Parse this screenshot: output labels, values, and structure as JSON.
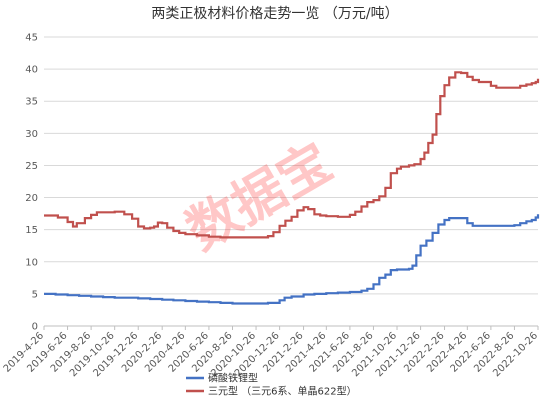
{
  "chart_data": {
    "type": "line",
    "title": "两类正极材料价格走势一览 （万元/吨）",
    "watermark": "数据宝",
    "ylim": [
      0,
      45
    ],
    "yticks": [
      0,
      5,
      10,
      15,
      20,
      25,
      30,
      35,
      40,
      45
    ],
    "xlim": [
      "2019-04-26",
      "2022-10-26"
    ],
    "xticks": [
      "2019-4-26",
      "2019-6-26",
      "2019-8-26",
      "2019-10-26",
      "2019-12-26",
      "2020-2-26",
      "2020-4-26",
      "2020-6-26",
      "2020-8-26",
      "2020-10-26",
      "2020-12-26",
      "2021-2-26",
      "2021-4-26",
      "2021-6-26",
      "2021-8-26",
      "2021-10-26",
      "2021-12-26",
      "2022-2-26",
      "2022-4-26",
      "2022-6-26",
      "2022-8-26",
      "2022-10-26"
    ],
    "grid": true,
    "legend_position": "bottom",
    "series": [
      {
        "name": "磷酸铁锂型",
        "color": "#4472c4",
        "points": [
          [
            "2019-04-26",
            5.0
          ],
          [
            "2019-05-26",
            4.9
          ],
          [
            "2019-06-26",
            4.8
          ],
          [
            "2019-07-26",
            4.7
          ],
          [
            "2019-08-26",
            4.6
          ],
          [
            "2019-09-26",
            4.5
          ],
          [
            "2019-10-26",
            4.4
          ],
          [
            "2019-11-26",
            4.4
          ],
          [
            "2019-12-26",
            4.3
          ],
          [
            "2020-01-26",
            4.2
          ],
          [
            "2020-02-26",
            4.1
          ],
          [
            "2020-03-26",
            4.0
          ],
          [
            "2020-04-26",
            3.9
          ],
          [
            "2020-05-26",
            3.8
          ],
          [
            "2020-06-26",
            3.7
          ],
          [
            "2020-07-26",
            3.6
          ],
          [
            "2020-08-26",
            3.5
          ],
          [
            "2020-09-26",
            3.5
          ],
          [
            "2020-10-26",
            3.5
          ],
          [
            "2020-11-26",
            3.6
          ],
          [
            "2020-12-26",
            4.0
          ],
          [
            "2021-01-08",
            4.4
          ],
          [
            "2021-01-26",
            4.6
          ],
          [
            "2021-02-26",
            4.9
          ],
          [
            "2021-03-26",
            5.0
          ],
          [
            "2021-04-26",
            5.1
          ],
          [
            "2021-05-26",
            5.2
          ],
          [
            "2021-06-26",
            5.3
          ],
          [
            "2021-07-26",
            5.5
          ],
          [
            "2021-08-10",
            5.8
          ],
          [
            "2021-08-26",
            6.5
          ],
          [
            "2021-09-10",
            7.5
          ],
          [
            "2021-09-26",
            8.0
          ],
          [
            "2021-10-10",
            8.7
          ],
          [
            "2021-10-26",
            8.8
          ],
          [
            "2021-11-26",
            8.9
          ],
          [
            "2021-12-05",
            9.4
          ],
          [
            "2021-12-15",
            11.0
          ],
          [
            "2021-12-26",
            12.5
          ],
          [
            "2022-01-10",
            13.3
          ],
          [
            "2022-01-26",
            14.5
          ],
          [
            "2022-02-10",
            15.8
          ],
          [
            "2022-02-26",
            16.5
          ],
          [
            "2022-03-10",
            16.8
          ],
          [
            "2022-04-05",
            16.8
          ],
          [
            "2022-04-26",
            16.0
          ],
          [
            "2022-05-10",
            15.6
          ],
          [
            "2022-06-26",
            15.6
          ],
          [
            "2022-07-26",
            15.6
          ],
          [
            "2022-08-26",
            15.7
          ],
          [
            "2022-09-10",
            16.0
          ],
          [
            "2022-09-26",
            16.3
          ],
          [
            "2022-10-10",
            16.5
          ],
          [
            "2022-10-20",
            16.9
          ],
          [
            "2022-10-26",
            17.4
          ]
        ]
      },
      {
        "name": "三元型 （三元6系、单晶622型）",
        "color": "#c0504d",
        "points": [
          [
            "2019-04-26",
            17.2
          ],
          [
            "2019-05-15",
            17.2
          ],
          [
            "2019-06-01",
            16.9
          ],
          [
            "2019-06-26",
            16.2
          ],
          [
            "2019-07-10",
            15.5
          ],
          [
            "2019-07-20",
            16.0
          ],
          [
            "2019-08-10",
            16.8
          ],
          [
            "2019-08-26",
            17.3
          ],
          [
            "2019-09-10",
            17.7
          ],
          [
            "2019-10-26",
            17.8
          ],
          [
            "2019-11-20",
            17.4
          ],
          [
            "2019-12-10",
            16.7
          ],
          [
            "2019-12-26",
            15.5
          ],
          [
            "2020-01-10",
            15.2
          ],
          [
            "2020-01-26",
            15.3
          ],
          [
            "2020-02-05",
            15.5
          ],
          [
            "2020-02-15",
            16.1
          ],
          [
            "2020-02-26",
            16.0
          ],
          [
            "2020-03-10",
            15.3
          ],
          [
            "2020-03-26",
            14.8
          ],
          [
            "2020-04-10",
            14.5
          ],
          [
            "2020-04-26",
            14.3
          ],
          [
            "2020-05-26",
            14.1
          ],
          [
            "2020-06-26",
            13.9
          ],
          [
            "2020-07-26",
            13.8
          ],
          [
            "2020-08-26",
            13.8
          ],
          [
            "2020-09-26",
            13.8
          ],
          [
            "2020-10-26",
            13.8
          ],
          [
            "2020-11-26",
            14.0
          ],
          [
            "2020-12-10",
            14.6
          ],
          [
            "2020-12-26",
            15.6
          ],
          [
            "2021-01-10",
            16.4
          ],
          [
            "2021-01-26",
            17.0
          ],
          [
            "2021-02-10",
            18.0
          ],
          [
            "2021-02-26",
            18.5
          ],
          [
            "2021-03-10",
            18.2
          ],
          [
            "2021-03-26",
            17.4
          ],
          [
            "2021-04-10",
            17.2
          ],
          [
            "2021-04-26",
            17.1
          ],
          [
            "2021-05-26",
            17.0
          ],
          [
            "2021-06-26",
            17.3
          ],
          [
            "2021-07-10",
            17.8
          ],
          [
            "2021-07-26",
            18.6
          ],
          [
            "2021-08-10",
            19.3
          ],
          [
            "2021-08-26",
            19.6
          ],
          [
            "2021-09-10",
            20.2
          ],
          [
            "2021-09-26",
            21.5
          ],
          [
            "2021-10-10",
            23.8
          ],
          [
            "2021-10-26",
            24.5
          ],
          [
            "2021-11-05",
            24.8
          ],
          [
            "2021-11-26",
            25.0
          ],
          [
            "2021-12-10",
            25.2
          ],
          [
            "2021-12-26",
            26.0
          ],
          [
            "2022-01-05",
            27.0
          ],
          [
            "2022-01-15",
            28.5
          ],
          [
            "2022-01-26",
            29.8
          ],
          [
            "2022-02-05",
            33.0
          ],
          [
            "2022-02-15",
            35.8
          ],
          [
            "2022-02-26",
            37.5
          ],
          [
            "2022-03-10",
            38.7
          ],
          [
            "2022-03-26",
            39.5
          ],
          [
            "2022-04-10",
            39.4
          ],
          [
            "2022-04-26",
            38.8
          ],
          [
            "2022-05-10",
            38.3
          ],
          [
            "2022-05-26",
            38.0
          ],
          [
            "2022-06-26",
            37.4
          ],
          [
            "2022-07-10",
            37.1
          ],
          [
            "2022-07-26",
            37.1
          ],
          [
            "2022-08-26",
            37.1
          ],
          [
            "2022-09-10",
            37.4
          ],
          [
            "2022-09-26",
            37.6
          ],
          [
            "2022-10-10",
            37.8
          ],
          [
            "2022-10-20",
            38.0
          ],
          [
            "2022-10-26",
            38.5
          ]
        ]
      }
    ]
  }
}
